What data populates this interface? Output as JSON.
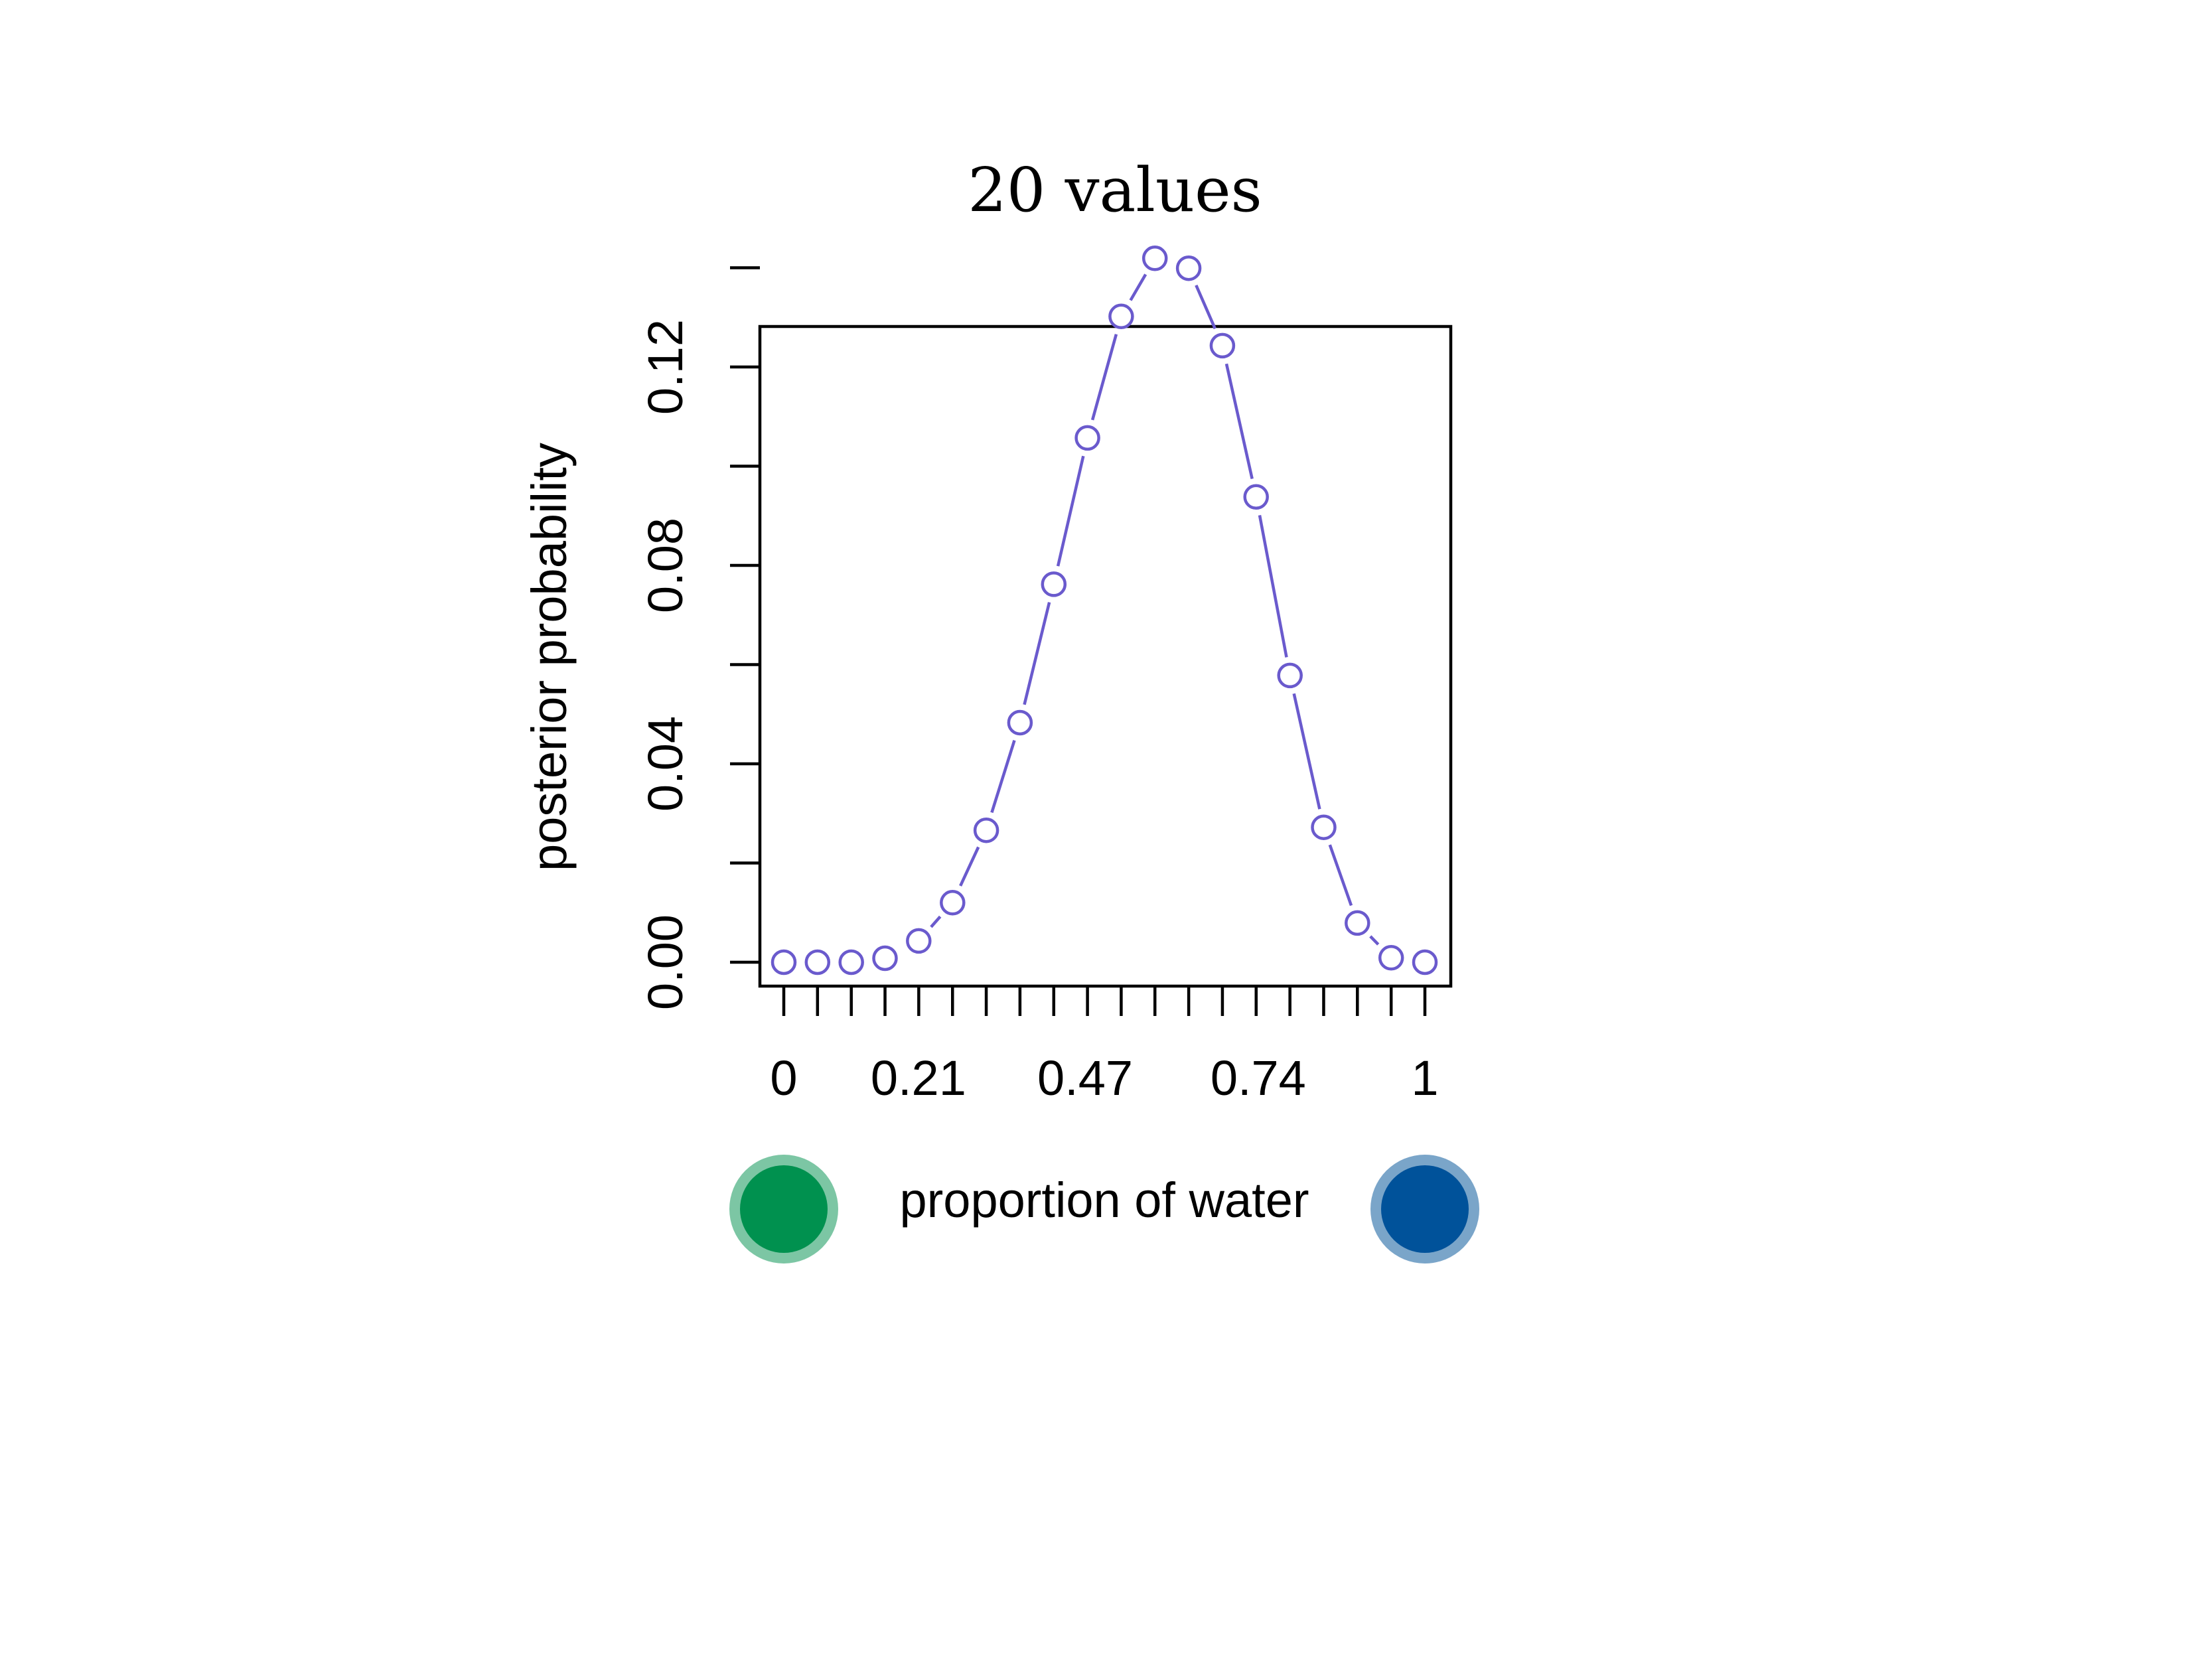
{
  "colors": {
    "series": "#6a5acd",
    "frame": "#000000",
    "left_marker_fill": "#00914f",
    "left_marker_ring": "#7cc6a4",
    "right_marker_fill": "#00529a",
    "right_marker_ring": "#7aa5c9"
  },
  "icons": {
    "left_marker": "green-circle-icon",
    "right_marker": "blue-circle-icon"
  },
  "chart_data": {
    "type": "line",
    "title": "20 values",
    "xlabel": "proportion of water",
    "ylabel": "posterior probability",
    "xlim": [
      0,
      1
    ],
    "ylim": [
      0,
      0.14
    ],
    "x_tick_labels": [
      "0",
      "0.21",
      "0.47",
      "0.74",
      "1"
    ],
    "y_tick_labels": [
      "0.00",
      "0.04",
      "0.08",
      "0.12"
    ],
    "grid": false,
    "markers": "open-circle",
    "series": [
      {
        "x": [
          0.0,
          0.0526,
          0.1053,
          0.1579,
          0.2105,
          0.2632,
          0.3158,
          0.3684,
          0.4211,
          0.4737,
          0.5263,
          0.5789,
          0.6316,
          0.6842,
          0.7368,
          0.7895,
          0.8421,
          0.8947,
          0.9474,
          1.0
        ],
        "values": [
          0.0,
          0.0,
          0.0,
          0.0008,
          0.0043,
          0.012,
          0.0266,
          0.0483,
          0.0762,
          0.1057,
          0.1302,
          0.1419,
          0.1399,
          0.1243,
          0.0938,
          0.0578,
          0.0272,
          0.0079,
          0.0009,
          0.0
        ]
      }
    ]
  }
}
